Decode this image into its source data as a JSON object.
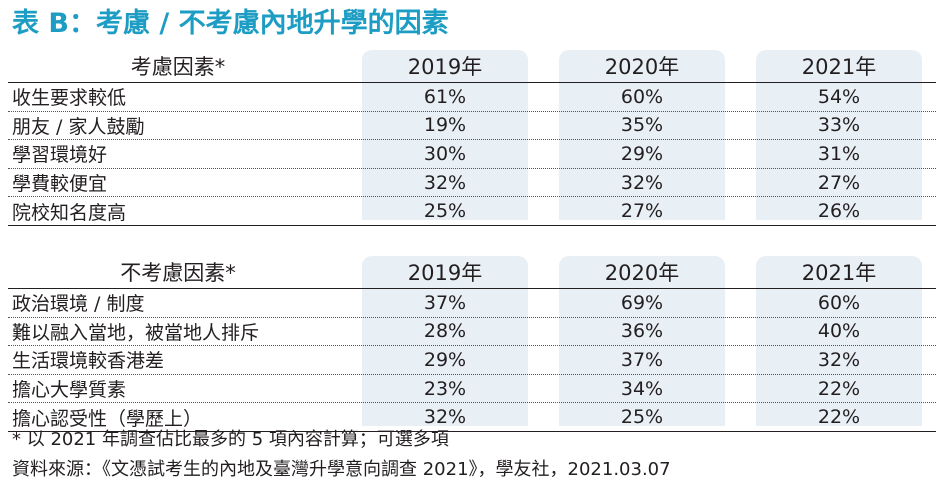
{
  "title": "表 B：考慮 / 不考慮內地升學的因素",
  "table1": {
    "header": [
      "考慮因素*",
      "2019年",
      "2020年",
      "2021年"
    ],
    "rows": [
      [
        "收生要求較低",
        "61%",
        "60%",
        "54%"
      ],
      [
        "朋友 / 家人鼓勵",
        "19%",
        "35%",
        "33%"
      ],
      [
        "學習環境好",
        "30%",
        "29%",
        "31%"
      ],
      [
        "學費較便宜",
        "32%",
        "32%",
        "27%"
      ],
      [
        "院校知名度高",
        "25%",
        "27%",
        "26%"
      ]
    ]
  },
  "table2": {
    "header": [
      "不考慮因素*",
      "2019年",
      "2020年",
      "2021年"
    ],
    "rows": [
      [
        "政治環境 / 制度",
        "37%",
        "69%",
        "60%"
      ],
      [
        "難以融入當地，被當地人排斥",
        "28%",
        "36%",
        "40%"
      ],
      [
        "生活環境較香港差",
        "29%",
        "37%",
        "32%"
      ],
      [
        "擔心大學質素",
        "23%",
        "34%",
        "22%"
      ],
      [
        "擔心認受性（學歷上）",
        "32%",
        "25%",
        "22%"
      ]
    ]
  },
  "footnote": "* 以 2021 年調查佔比最多的 5 項內容計算；可選多項",
  "source": "資料來源：《文憑試考生的內地及臺灣升學意向調查 2021》，學友社，2021.03.07",
  "colors": {
    "title": "#1d9dc4",
    "column_band": "#e8eff5",
    "text": "#231f20"
  }
}
